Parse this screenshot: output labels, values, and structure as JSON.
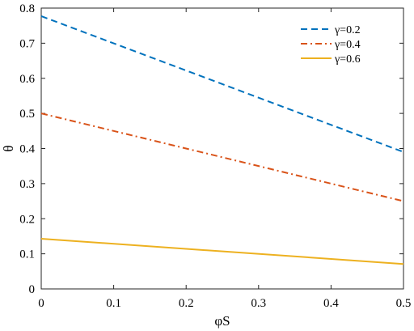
{
  "chart_data": {
    "type": "line",
    "xlabel": "φS",
    "ylabel": "θ",
    "xlim": [
      0,
      0.5
    ],
    "ylim": [
      0,
      0.8
    ],
    "xticks": [
      0,
      0.1,
      0.2,
      0.3,
      0.4,
      0.5
    ],
    "xtick_labels": [
      "0",
      "0.1",
      "0.2",
      "0.3",
      "0.4",
      "0.5"
    ],
    "yticks": [
      0,
      0.1,
      0.2,
      0.3,
      0.4,
      0.5,
      0.6,
      0.7,
      0.8
    ],
    "ytick_labels": [
      "0",
      "0.1",
      "0.2",
      "0.3",
      "0.4",
      "0.5",
      "0.6",
      "0.7",
      "0.8"
    ],
    "grid": false,
    "legend_position": "top-right",
    "series": [
      {
        "name": "γ=0.2",
        "color": "#0072BD",
        "style": "dashed",
        "x": [
          0,
          0.5
        ],
        "y": [
          0.777,
          0.39
        ]
      },
      {
        "name": "γ=0.4",
        "color": "#D95319",
        "style": "dash-dot",
        "x": [
          0,
          0.5
        ],
        "y": [
          0.5,
          0.25
        ]
      },
      {
        "name": "γ=0.6",
        "color": "#EDB120",
        "style": "solid",
        "x": [
          0,
          0.5
        ],
        "y": [
          0.143,
          0.071
        ]
      }
    ]
  }
}
